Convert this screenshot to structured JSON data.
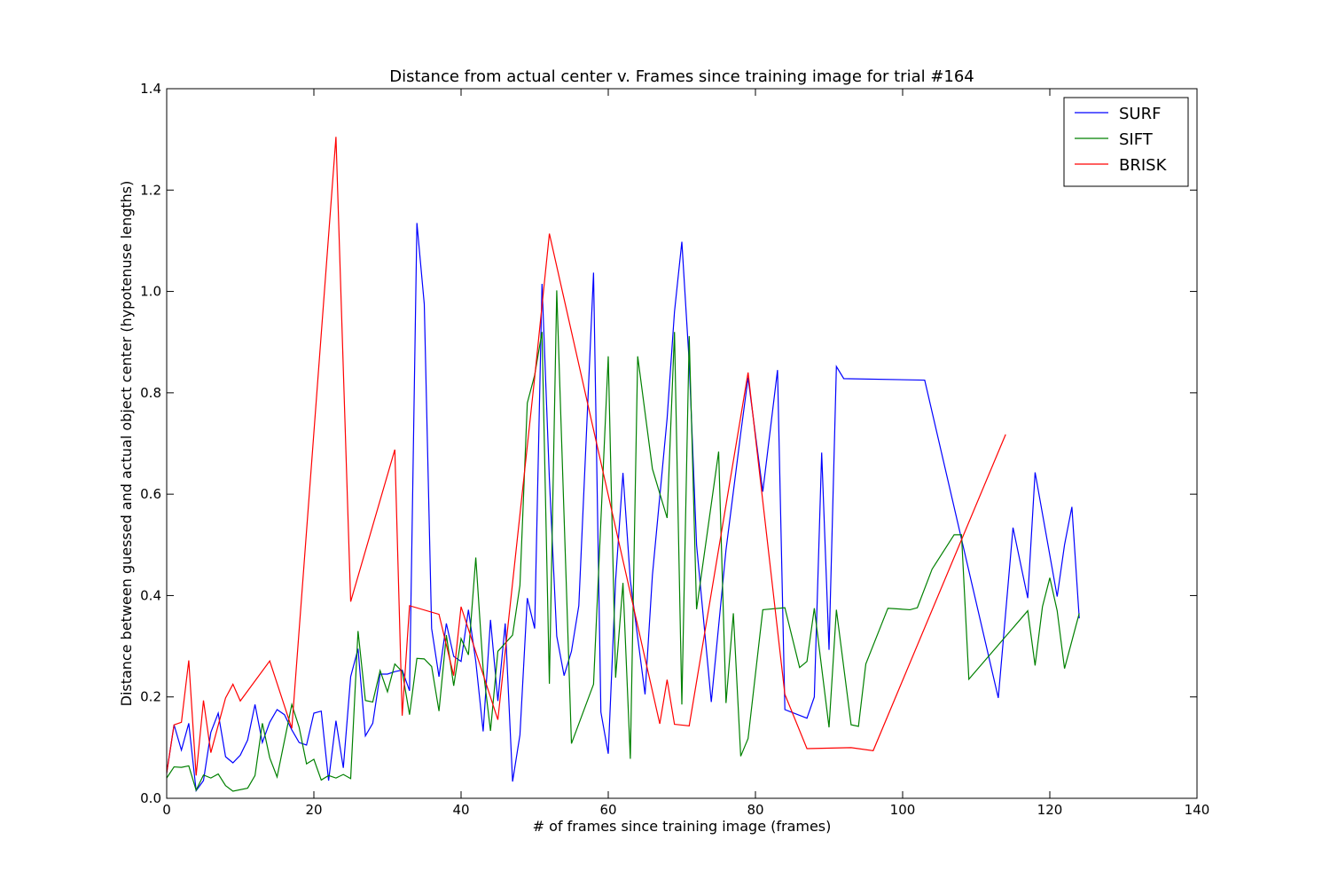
{
  "chart_data": {
    "type": "line",
    "title": "Distance from actual center v. Frames since training image for trial #164",
    "x_label": "# of frames since training image (frames)",
    "y_label": "Distance between guessed and actual object center (hypotenuse lengths)",
    "xlim": [
      0,
      140
    ],
    "xticks": [
      0,
      20,
      40,
      60,
      80,
      100,
      120,
      140
    ],
    "ylim": [
      0,
      1.4
    ],
    "yticks": [
      {
        "value": 0,
        "label": "0.0"
      },
      0.2,
      0.4,
      0.6,
      0.8,
      {
        "value": 1,
        "label": "1.0"
      },
      1.2,
      1.4
    ],
    "legend": "upper right",
    "series": [
      {
        "name": "SURF",
        "color": "#0000ff",
        "x": [
          0,
          1,
          2,
          3,
          4,
          5,
          6,
          7,
          8,
          9,
          10,
          11,
          12,
          13,
          14,
          15,
          16,
          17,
          18,
          19,
          20,
          21,
          22,
          23,
          24,
          25,
          26,
          27,
          28,
          29,
          30,
          31,
          32,
          33,
          34,
          35,
          36,
          37,
          38,
          39,
          40,
          41,
          42,
          43,
          44,
          45,
          46,
          47,
          48,
          49,
          50,
          51,
          52,
          53,
          54,
          55,
          56,
          58,
          59,
          60,
          61,
          62,
          63,
          65,
          66,
          68,
          69,
          70,
          71,
          72,
          74,
          76,
          78,
          79,
          81,
          83,
          84,
          87,
          88,
          89,
          90,
          91,
          92,
          103,
          113,
          115,
          117,
          118,
          121,
          122,
          123,
          124
        ],
        "values": [
          0.05,
          0.145,
          0.095,
          0.148,
          0.015,
          0.035,
          0.13,
          0.168,
          0.082,
          0.07,
          0.085,
          0.115,
          0.185,
          0.11,
          0.15,
          0.175,
          0.165,
          0.135,
          0.11,
          0.105,
          0.168,
          0.172,
          0.035,
          0.153,
          0.06,
          0.24,
          0.295,
          0.123,
          0.148,
          0.245,
          0.245,
          0.25,
          0.253,
          0.212,
          1.135,
          0.975,
          0.335,
          0.24,
          0.345,
          0.28,
          0.27,
          0.372,
          0.27,
          0.132,
          0.352,
          0.192,
          0.345,
          0.033,
          0.125,
          0.395,
          0.335,
          1.015,
          0.63,
          0.32,
          0.242,
          0.29,
          0.38,
          1.037,
          0.17,
          0.088,
          0.43,
          0.642,
          0.43,
          0.205,
          0.44,
          0.75,
          0.96,
          1.098,
          0.86,
          0.5,
          0.19,
          0.49,
          0.72,
          0.83,
          0.605,
          0.845,
          0.175,
          0.158,
          0.2,
          0.682,
          0.293,
          0.852,
          0.828,
          0.825,
          0.198,
          0.534,
          0.395,
          0.643,
          0.398,
          0.5,
          0.575,
          0.355
        ]
      },
      {
        "name": "SIFT",
        "color": "#008000",
        "x": [
          0,
          1,
          2,
          3,
          4,
          5,
          6,
          7,
          8,
          9,
          11,
          12,
          13,
          14,
          15,
          17,
          18,
          19,
          20,
          21,
          22,
          23,
          24,
          25,
          26,
          27,
          28,
          29,
          30,
          31,
          32,
          33,
          34,
          35,
          36,
          37,
          38,
          39,
          40,
          41,
          42,
          43,
          44,
          45,
          47,
          48,
          49,
          50,
          51,
          52,
          53,
          55,
          58,
          60,
          61,
          62,
          63,
          64,
          66,
          68,
          69,
          70,
          71,
          72,
          75,
          76,
          77,
          78,
          79,
          81,
          84,
          86,
          87,
          88,
          90,
          91,
          93,
          94,
          95,
          98,
          101,
          102,
          104,
          107,
          108,
          109,
          117,
          118,
          119,
          120,
          121,
          122,
          124
        ],
        "values": [
          0.04,
          0.062,
          0.061,
          0.064,
          0.016,
          0.046,
          0.04,
          0.048,
          0.025,
          0.014,
          0.02,
          0.045,
          0.148,
          0.08,
          0.042,
          0.185,
          0.14,
          0.068,
          0.077,
          0.036,
          0.045,
          0.04,
          0.047,
          0.039,
          0.33,
          0.193,
          0.19,
          0.252,
          0.21,
          0.265,
          0.25,
          0.165,
          0.276,
          0.275,
          0.26,
          0.172,
          0.322,
          0.222,
          0.315,
          0.283,
          0.475,
          0.255,
          0.133,
          0.29,
          0.322,
          0.42,
          0.78,
          0.835,
          0.92,
          0.226,
          1.002,
          0.108,
          0.225,
          0.872,
          0.238,
          0.425,
          0.078,
          0.872,
          0.65,
          0.553,
          0.92,
          0.185,
          0.912,
          0.373,
          0.684,
          0.188,
          0.365,
          0.083,
          0.118,
          0.372,
          0.376,
          0.258,
          0.27,
          0.375,
          0.14,
          0.372,
          0.145,
          0.142,
          0.265,
          0.375,
          0.372,
          0.376,
          0.452,
          0.52,
          0.52,
          0.235,
          0.37,
          0.262,
          0.378,
          0.435,
          0.37,
          0.256,
          0.365
        ]
      },
      {
        "name": "BRISK",
        "color": "#ff0000",
        "x": [
          0,
          1,
          2,
          3,
          4,
          5,
          6,
          8,
          9,
          10,
          14,
          17,
          23,
          25,
          31,
          32,
          33,
          37,
          39,
          40,
          45,
          50,
          52,
          67,
          68,
          69,
          71,
          79,
          84,
          87,
          93,
          96,
          114
        ],
        "values": [
          0.05,
          0.145,
          0.15,
          0.272,
          0.045,
          0.193,
          0.09,
          0.198,
          0.225,
          0.192,
          0.271,
          0.138,
          1.305,
          0.388,
          0.688,
          0.163,
          0.38,
          0.363,
          0.242,
          0.378,
          0.155,
          0.83,
          1.114,
          0.147,
          0.234,
          0.146,
          0.143,
          0.84,
          0.205,
          0.098,
          0.1,
          0.094,
          0.718
        ]
      }
    ]
  }
}
